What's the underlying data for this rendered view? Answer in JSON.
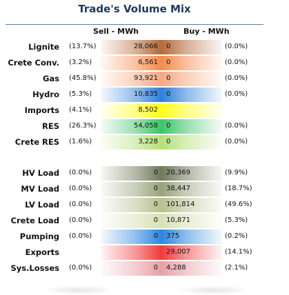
{
  "title": "Trade's Volume Mix",
  "headers": {
    "sell": "Sell - MWh",
    "buy": "Buy - MWh"
  },
  "colors": {
    "title": "#1f3a5a",
    "rule": "#5a7da3"
  },
  "rows": [
    {
      "label": "Lignite",
      "sell_pct": "(13.7%)",
      "sell": "28,066",
      "buy": "0",
      "buy_pct": "(0.0%)",
      "color": "#b46a3c"
    },
    {
      "label": "Crete Conv.",
      "sell_pct": "(3.2%)",
      "sell": "6,561",
      "buy": "0",
      "buy_pct": "(0.0%)",
      "color": "#f58a4c"
    },
    {
      "label": "Gas",
      "sell_pct": "(45.8%)",
      "sell": "93,921",
      "buy": "0",
      "buy_pct": "(0.0%)",
      "color": "#f5a883"
    },
    {
      "label": "Hydro",
      "sell_pct": "(5.3%)",
      "sell": "10,835",
      "buy": "0",
      "buy_pct": "(0.0%)",
      "color": "#2f7fd8"
    },
    {
      "label": "Imports",
      "sell_pct": "(4.1%)",
      "sell": "8,502",
      "buy": "",
      "buy_pct": "",
      "color": "#ffff1a"
    },
    {
      "label": "RES",
      "sell_pct": "(26.3%)",
      "sell": "54,058",
      "buy": "0",
      "buy_pct": "(0.0%)",
      "color": "#3fc46a"
    },
    {
      "label": "Crete RES",
      "sell_pct": "(1.6%)",
      "sell": "3,228",
      "buy": "0",
      "buy_pct": "(0.0%)",
      "color": "#b6e07a"
    },
    {
      "label": "HV Load",
      "sell_pct": "(0.0%)",
      "sell": "0",
      "buy": "20,369",
      "buy_pct": "(9.9%)",
      "color": "#6f7a5a"
    },
    {
      "label": "MV Load",
      "sell_pct": "(0.0%)",
      "sell": "0",
      "buy": "38,447",
      "buy_pct": "(18.7%)",
      "color": "#9aa27c"
    },
    {
      "label": "LV Load",
      "sell_pct": "(0.0%)",
      "sell": "0",
      "buy": "101,814",
      "buy_pct": "(49.6%)",
      "color": "#b7c08f"
    },
    {
      "label": "Crete Load",
      "sell_pct": "(0.0%)",
      "sell": "0",
      "buy": "10,871",
      "buy_pct": "(5.3%)",
      "color": "#d7e0b4"
    },
    {
      "label": "Pumping",
      "sell_pct": "(0.0%)",
      "sell": "0",
      "buy": "375",
      "buy_pct": "(0.2%)",
      "color": "#2c86e0"
    },
    {
      "label": "Exports",
      "sell_pct": "",
      "sell": "",
      "buy": "29,007",
      "buy_pct": "(14.1%)",
      "color": "#f23a3a"
    },
    {
      "label": "Sys.Losses",
      "sell_pct": "(0.0%)",
      "sell": "0",
      "buy": "4,288",
      "buy_pct": "(2.1%)",
      "color": "#e8a0a8"
    }
  ]
}
